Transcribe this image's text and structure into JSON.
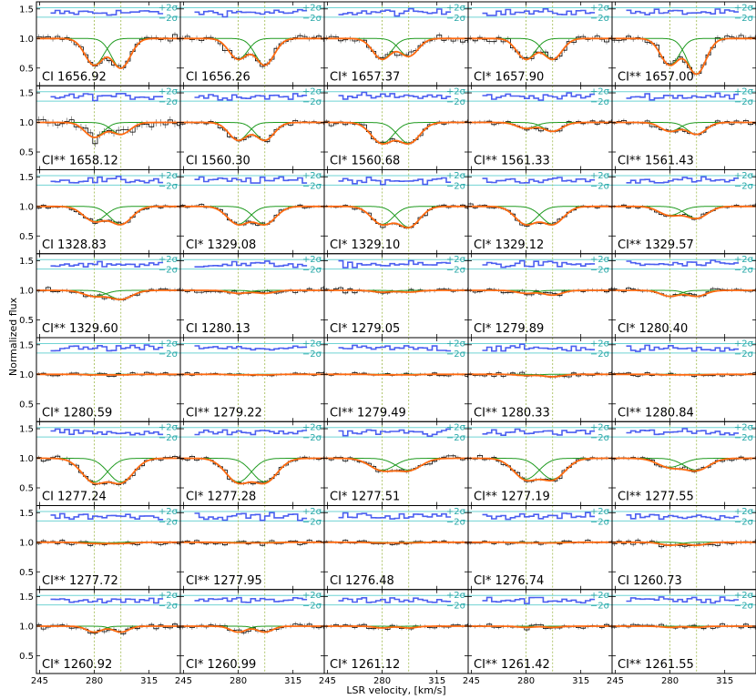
{
  "chart_data": {
    "type": "line",
    "title": "",
    "xlabel": "LSR velocity, [km/s]",
    "ylabel": "Normalized flux",
    "xlim": [
      243,
      335
    ],
    "ylim": [
      0.2,
      1.62
    ],
    "x_ticks": [
      245,
      280,
      315
    ],
    "y_ticks": [
      0.5,
      1.0,
      1.5
    ],
    "grid": false,
    "component_velocities": [
      280,
      297
    ],
    "residual_band_labels": [
      "+2σ",
      "−2σ"
    ],
    "colors": {
      "data": "#000000",
      "model_total": "#ff6a10",
      "components": "#1f9a1f",
      "residuals": "#4b5ff0",
      "sigma_lines": "#6fd3d3",
      "component_markers": "#9cb84a"
    },
    "panels": [
      {
        "label": "CI 1656.92",
        "depths": [
          0.45,
          0.5
        ],
        "widths": [
          6,
          6
        ],
        "noise": 0.07
      },
      {
        "label": "CI 1656.26",
        "depths": [
          0.35,
          0.45
        ],
        "widths": [
          6,
          6
        ],
        "noise": 0.07
      },
      {
        "label": "CI* 1657.37",
        "depths": [
          0.35,
          0.3
        ],
        "widths": [
          6,
          6
        ],
        "noise": 0.07
      },
      {
        "label": "CI* 1657.90",
        "depths": [
          0.35,
          0.35
        ],
        "widths": [
          6,
          6
        ],
        "noise": 0.07
      },
      {
        "label": "CI** 1657.00",
        "depths": [
          0.45,
          0.6
        ],
        "widths": [
          6,
          6
        ],
        "noise": 0.07
      },
      {
        "label": "CI** 1658.12",
        "depths": [
          0.25,
          0.2
        ],
        "widths": [
          6,
          6
        ],
        "noise": 0.1
      },
      {
        "label": "CI 1560.30",
        "depths": [
          0.3,
          0.3
        ],
        "widths": [
          6,
          6
        ],
        "noise": 0.05
      },
      {
        "label": "CI* 1560.68",
        "depths": [
          0.35,
          0.35
        ],
        "widths": [
          7,
          7
        ],
        "noise": 0.05
      },
      {
        "label": "CI** 1561.33",
        "depths": [
          0.1,
          0.15
        ],
        "widths": [
          6,
          6
        ],
        "noise": 0.05
      },
      {
        "label": "CI** 1561.43",
        "depths": [
          0.15,
          0.2
        ],
        "widths": [
          6,
          6
        ],
        "noise": 0.05
      },
      {
        "label": "CI 1328.83",
        "depths": [
          0.25,
          0.3
        ],
        "widths": [
          7,
          7
        ],
        "noise": 0.04
      },
      {
        "label": "CI* 1329.08",
        "depths": [
          0.3,
          0.3
        ],
        "widths": [
          7,
          7
        ],
        "noise": 0.04
      },
      {
        "label": "CI* 1329.10",
        "depths": [
          0.3,
          0.35
        ],
        "widths": [
          7,
          7
        ],
        "noise": 0.04
      },
      {
        "label": "CI* 1329.12",
        "depths": [
          0.3,
          0.3
        ],
        "widths": [
          7,
          7
        ],
        "noise": 0.04
      },
      {
        "label": "CI** 1329.57",
        "depths": [
          0.15,
          0.2
        ],
        "widths": [
          7,
          7
        ],
        "noise": 0.04
      },
      {
        "label": "CI** 1329.60",
        "depths": [
          0.1,
          0.15
        ],
        "widths": [
          7,
          7
        ],
        "noise": 0.05
      },
      {
        "label": "CI 1280.13",
        "depths": [
          0.05,
          0.05
        ],
        "widths": [
          6,
          6
        ],
        "noise": 0.05
      },
      {
        "label": "CI* 1279.05",
        "depths": [
          0.03,
          0.03
        ],
        "widths": [
          6,
          6
        ],
        "noise": 0.05
      },
      {
        "label": "CI* 1279.89",
        "depths": [
          0.05,
          0.08
        ],
        "widths": [
          6,
          6
        ],
        "noise": 0.05
      },
      {
        "label": "CI* 1280.40",
        "depths": [
          0.1,
          0.1
        ],
        "widths": [
          6,
          6
        ],
        "noise": 0.05
      },
      {
        "label": "CI* 1280.59",
        "depths": [
          0.01,
          0.01
        ],
        "widths": [
          6,
          6
        ],
        "noise": 0.04
      },
      {
        "label": "CI** 1279.22",
        "depths": [
          0.01,
          0.01
        ],
        "widths": [
          6,
          6
        ],
        "noise": 0.04
      },
      {
        "label": "CI** 1279.49",
        "depths": [
          0.01,
          0.01
        ],
        "widths": [
          6,
          6
        ],
        "noise": 0.04
      },
      {
        "label": "CI** 1280.33",
        "depths": [
          0.02,
          0.04
        ],
        "widths": [
          6,
          6
        ],
        "noise": 0.05
      },
      {
        "label": "CI** 1280.84",
        "depths": [
          0.01,
          0.01
        ],
        "widths": [
          6,
          6
        ],
        "noise": 0.04
      },
      {
        "label": "CI 1277.24",
        "depths": [
          0.4,
          0.4
        ],
        "widths": [
          8,
          8
        ],
        "noise": 0.05
      },
      {
        "label": "CI* 1277.28",
        "depths": [
          0.4,
          0.4
        ],
        "widths": [
          8,
          8
        ],
        "noise": 0.05
      },
      {
        "label": "CI* 1277.51",
        "depths": [
          0.2,
          0.2
        ],
        "widths": [
          8,
          8
        ],
        "noise": 0.05
      },
      {
        "label": "CI** 1277.19",
        "depths": [
          0.35,
          0.35
        ],
        "widths": [
          8,
          8
        ],
        "noise": 0.05
      },
      {
        "label": "CI** 1277.55",
        "depths": [
          0.15,
          0.2
        ],
        "widths": [
          8,
          8
        ],
        "noise": 0.05
      },
      {
        "label": "CI** 1277.72",
        "depths": [
          0.02,
          0.02
        ],
        "widths": [
          8,
          8
        ],
        "noise": 0.05
      },
      {
        "label": "CI** 1277.95",
        "depths": [
          0.01,
          0.01
        ],
        "widths": [
          8,
          8
        ],
        "noise": 0.04
      },
      {
        "label": "CI 1276.48",
        "depths": [
          0.01,
          0.01
        ],
        "widths": [
          8,
          8
        ],
        "noise": 0.04
      },
      {
        "label": "CI* 1276.74",
        "depths": [
          0.01,
          0.01
        ],
        "widths": [
          8,
          8
        ],
        "noise": 0.04
      },
      {
        "label": "CI 1260.73",
        "depths": [
          0.05,
          0.05
        ],
        "widths": [
          6,
          6
        ],
        "noise": 0.06
      },
      {
        "label": "CI* 1260.92",
        "depths": [
          0.1,
          0.1
        ],
        "widths": [
          5,
          5
        ],
        "noise": 0.06
      },
      {
        "label": "CI* 1260.99",
        "depths": [
          0.1,
          0.1
        ],
        "widths": [
          5,
          5
        ],
        "noise": 0.06
      },
      {
        "label": "CI* 1261.12",
        "depths": [
          0.03,
          0.03
        ],
        "widths": [
          5,
          5
        ],
        "noise": 0.05
      },
      {
        "label": "CI** 1261.42",
        "depths": [
          0.02,
          0.02
        ],
        "widths": [
          5,
          5
        ],
        "noise": 0.05
      },
      {
        "label": "CI** 1261.55",
        "depths": [
          0.02,
          0.02
        ],
        "widths": [
          5,
          5
        ],
        "noise": 0.05
      }
    ]
  }
}
